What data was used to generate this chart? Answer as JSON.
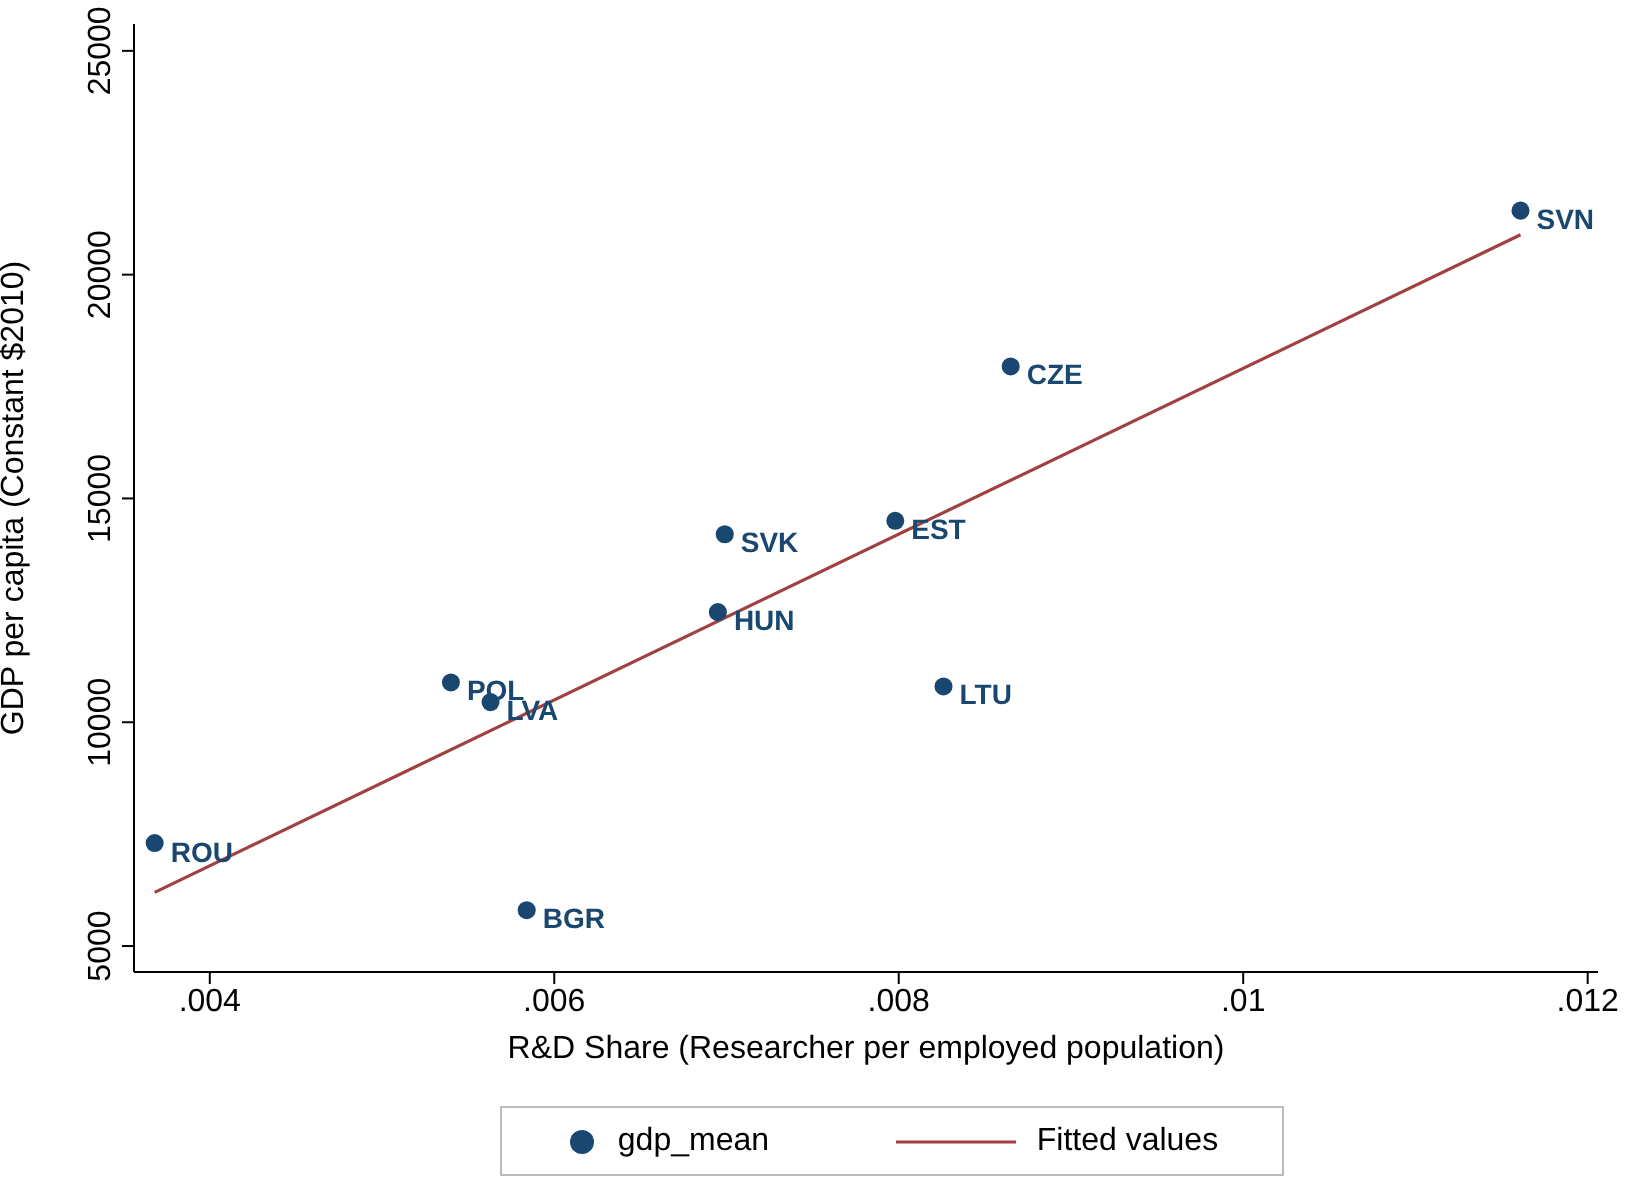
{
  "chart_data": {
    "type": "scatter",
    "xlabel": "R&D Share (Researcher per employed population)",
    "ylabel": "GDP per capita (Constant $2010)",
    "xlim": [
      0.00356,
      0.01206
    ],
    "ylim": [
      4420,
      25600
    ],
    "xticks": [
      {
        "value": 0.004,
        "label": ".004"
      },
      {
        "value": 0.006,
        "label": ".006"
      },
      {
        "value": 0.008,
        "label": ".008"
      },
      {
        "value": 0.01,
        "label": ".01"
      },
      {
        "value": 0.012,
        "label": ".012"
      }
    ],
    "yticks": [
      5000,
      10000,
      15000,
      20000,
      25000
    ],
    "marker": "circle",
    "legend": "bottom",
    "series": [
      {
        "name": "gdp_mean",
        "color": "#1a476f",
        "x": [
          0.00368,
          0.0054,
          0.00563,
          0.00584,
          0.01161,
          0.00865,
          0.00699,
          0.00798,
          0.00695,
          0.00826
        ],
        "values": [
          7300,
          10890,
          10450,
          5800,
          21430,
          17950,
          14200,
          14500,
          12460,
          10800
        ]
      },
      {
        "name": "Fitted values",
        "type": "line",
        "marker": "none",
        "color": "#a0403f",
        "x": [
          0.00368,
          0.01161
        ],
        "values": [
          6200,
          20890
        ]
      }
    ],
    "annotations": [
      {
        "text": "ROU",
        "x": 0.00368,
        "y": 7277
      },
      {
        "text": "POL",
        "x": 0.0054,
        "y": 10890
      },
      {
        "text": "LVA",
        "x": 0.00563,
        "y": 10450
      },
      {
        "text": "BGR",
        "x": 0.00584,
        "y": 5800
      },
      {
        "text": "SVN",
        "x": 0.01161,
        "y": 21430
      },
      {
        "text": "CZE",
        "x": 0.00865,
        "y": 17950
      },
      {
        "text": "SVK",
        "x": 0.00699,
        "y": 14200
      },
      {
        "text": "EST",
        "x": 0.00798,
        "y": 14500
      },
      {
        "text": "HUN",
        "x": 0.00695,
        "y": 12460
      },
      {
        "text": "LTU",
        "x": 0.00826,
        "y": 10800
      }
    ]
  }
}
